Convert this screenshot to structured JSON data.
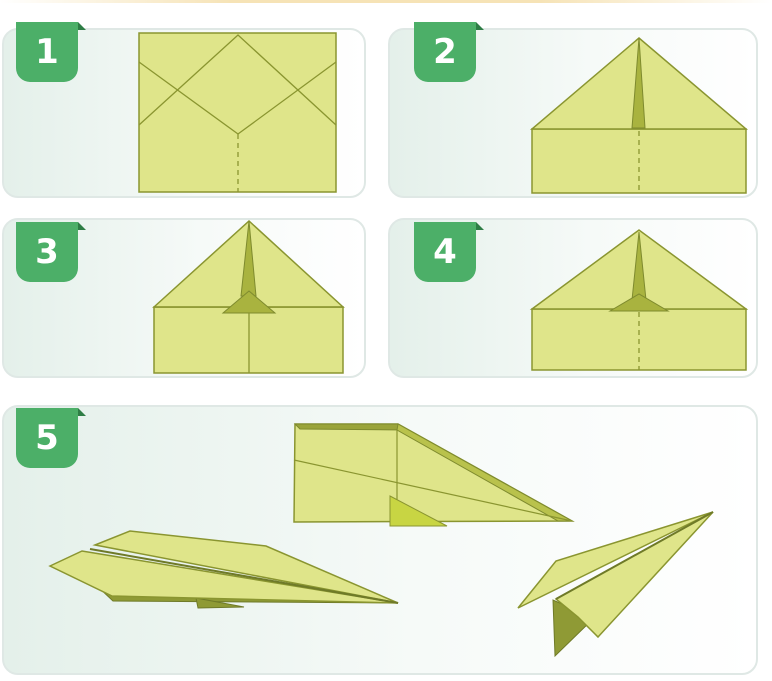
{
  "steps": [
    {
      "number": "1"
    },
    {
      "number": "2"
    },
    {
      "number": "3"
    },
    {
      "number": "4"
    },
    {
      "number": "5"
    }
  ],
  "colors": {
    "badge": "#4caf68",
    "paper": "#dfe58a",
    "paper_shadow": "#a3ad3e",
    "fold_line": "#7e8a2e",
    "panel_border": "#dfe8e5"
  }
}
